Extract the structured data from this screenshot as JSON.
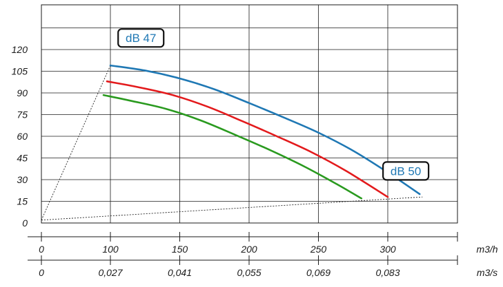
{
  "chart_data": {
    "type": "line",
    "title": "",
    "xlabel": "",
    "ylabel": "",
    "x_unit": "m3/h",
    "x_unit_secondary": "m3/s",
    "xlim": [
      0,
      300
    ],
    "ylim": [
      0,
      135
    ],
    "x_ticks": [
      "0",
      "100",
      "150",
      "200",
      "250",
      "300"
    ],
    "x_ticks_secondary": [
      "0",
      "0,027",
      "0,041",
      "0,055",
      "0,069",
      "0,083"
    ],
    "y_ticks": [
      "0",
      "15",
      "30",
      "45",
      "60",
      "75",
      "90",
      "105",
      "120"
    ],
    "grid": true,
    "series": [
      {
        "color": "#1f78b4",
        "x": [
          100,
          125,
          150,
          175,
          200,
          225,
          250,
          275,
          300,
          323
        ],
        "y": [
          109,
          105.5,
          100,
          92.5,
          83,
          73,
          62.5,
          50,
          35,
          20
        ]
      },
      {
        "color": "#e31a1c",
        "x": [
          95,
          120,
          145,
          170,
          195,
          220,
          245,
          270,
          300
        ],
        "y": [
          98,
          94,
          88.5,
          80.5,
          70.5,
          60,
          49,
          36,
          18
        ]
      },
      {
        "color": "#2a9a1f",
        "x": [
          90,
          115,
          140,
          165,
          190,
          215,
          240,
          263,
          281
        ],
        "y": [
          88.5,
          84.5,
          79,
          71,
          61,
          50.5,
          39,
          27,
          17
        ]
      }
    ],
    "boundary_lines": [
      {
        "style": "dotted",
        "x": [
          0,
          100
        ],
        "y": [
          2,
          109
        ]
      },
      {
        "style": "dotted",
        "x": [
          0,
          325
        ],
        "y": [
          2,
          18
        ]
      }
    ],
    "annotations": [
      {
        "text": "dB 47",
        "color": "#1f78b4",
        "x": 122,
        "y": 128
      },
      {
        "text": "dB 50",
        "color": "#1f78b4",
        "x": 313,
        "y": 36
      }
    ]
  }
}
